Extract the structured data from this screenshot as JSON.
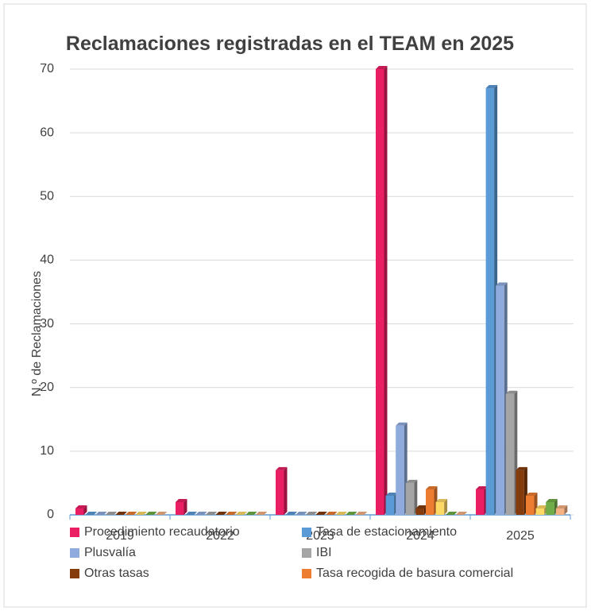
{
  "chart_data": {
    "type": "bar3d",
    "title": "Reclamaciones registradas en el TEAM en 2025",
    "y_label": "N.º de Reclamaciones",
    "categories": [
      "2019",
      "2022",
      "2023",
      "2024",
      "2025"
    ],
    "series": [
      {
        "name": "Procedimiento recaudatorio",
        "color": "#e91e63",
        "values": [
          1,
          2,
          7,
          70,
          4
        ]
      },
      {
        "name": "Tasa de estacionamiento",
        "color": "#5b9bd5",
        "values": [
          0,
          0,
          0,
          3,
          67
        ]
      },
      {
        "name": "Plusvalía",
        "color": "#8faadc",
        "values": [
          0,
          0,
          0,
          14,
          36
        ]
      },
      {
        "name": "IBI",
        "color": "#a5a5a5",
        "values": [
          0,
          0,
          0,
          5,
          19
        ]
      },
      {
        "name": "Otras tasas",
        "color": "#843c0c",
        "values": [
          0,
          0,
          0,
          1,
          7
        ]
      },
      {
        "name": "Tasa recogida de basura comercial",
        "color": "#ed7d31",
        "values": [
          0,
          0,
          0,
          4,
          3
        ]
      },
      {
        "name": null,
        "color": "#ffd966",
        "values": [
          0,
          0,
          0,
          2,
          1
        ]
      },
      {
        "name": null,
        "color": "#70ad47",
        "values": [
          0,
          0,
          0,
          0,
          2
        ]
      },
      {
        "name": null,
        "color": "#f4b183",
        "values": [
          0,
          0,
          0,
          0,
          1
        ]
      }
    ],
    "ylim": [
      0,
      70
    ],
    "yticks": [
      0,
      10,
      20,
      30,
      40,
      50,
      60,
      70
    ],
    "grid": true
  }
}
